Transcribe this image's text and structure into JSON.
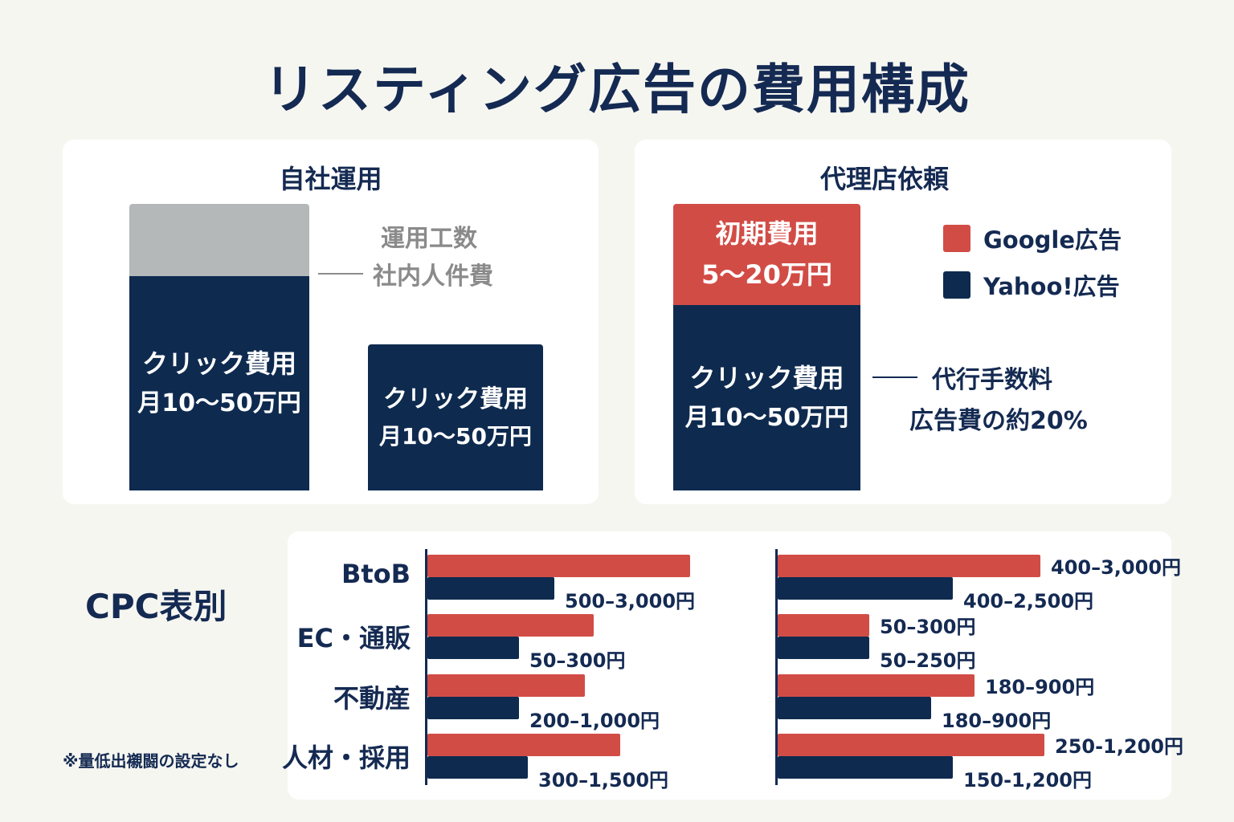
{
  "title": "リスティング広告の費用構成",
  "colors": {
    "navy": "#0e2a4f",
    "red": "#d24c46",
    "grey": "#b5b8b8"
  },
  "self_ops": {
    "heading": "自社運用",
    "stack_top_label": "",
    "side_note_line1": "運用工数",
    "side_note_line2": "社内人件費",
    "bar1_line1": "クリック費用",
    "bar1_line2": "月10～50万円",
    "bar2_line1": "クリック費用",
    "bar2_line2": "月10～50万円"
  },
  "agency": {
    "heading": "代理店依頼",
    "initial_line1": "初期費用",
    "initial_line2": "5～20万円",
    "click_line1": "クリック費用",
    "click_line2": "月10～50万円",
    "fee_line1": "代行手数料",
    "fee_line2": "広告費の約20%",
    "legend": [
      {
        "label": "Google広告",
        "color": "#d24c46"
      },
      {
        "label": "Yahoo!広告",
        "color": "#0e2a4f"
      }
    ]
  },
  "cpc": {
    "heading": "CPC表別",
    "footnote": "※量低出襯闘の設定なし"
  },
  "chart_data": {
    "type": "bar",
    "orientation": "horizontal",
    "categories": [
      "BtoB",
      "EC・通販",
      "不動産",
      "人材・採用"
    ],
    "panels": [
      {
        "series": [
          {
            "name": "Google広告",
            "values": [
              3000,
              1900,
              1800,
              2200
            ],
            "labels": [
              "",
              "",
              "",
              ""
            ]
          },
          {
            "name": "Yahoo!広告",
            "values": [
              1450,
              1050,
              1050,
              1150
            ],
            "labels": [
              "500–3,000円",
              "50–300円",
              "200–1,000円",
              "300–1,500円"
            ]
          }
        ]
      },
      {
        "series": [
          {
            "name": "Google広告",
            "values": [
              3000,
              1050,
              2250,
              3050
            ],
            "labels": [
              "400–3,000円",
              "50–300円",
              "180–900円",
              "250-1,200円"
            ]
          },
          {
            "name": "Yahoo!広告",
            "values": [
              2000,
              1050,
              1750,
              2000
            ],
            "labels": [
              "400–2,500円",
              "50–250円",
              "180–900円",
              "150-1,200円"
            ]
          }
        ]
      }
    ]
  }
}
